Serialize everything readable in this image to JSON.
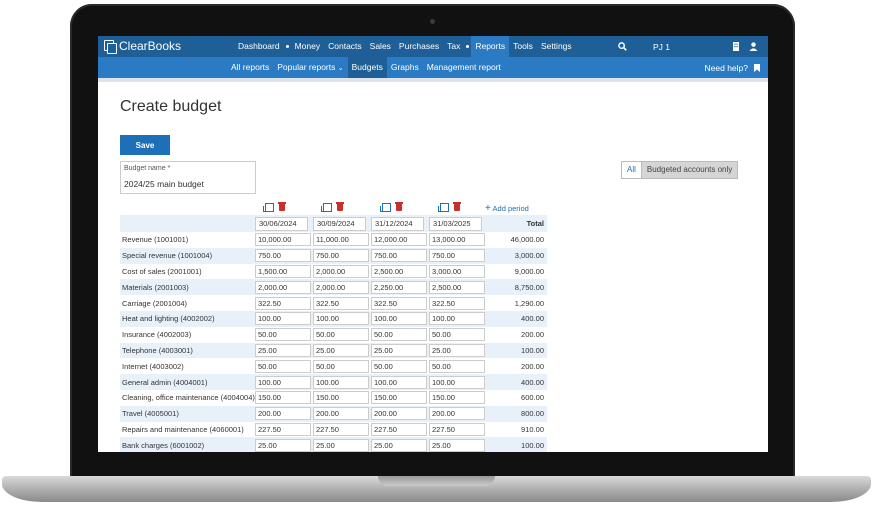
{
  "app": {
    "logo": "ClearBooks",
    "user": "PJ 1"
  },
  "nav": {
    "items": [
      "Dashboard",
      "Money",
      "Contacts",
      "Sales",
      "Purchases",
      "Tax",
      "Reports",
      "Tools",
      "Settings"
    ],
    "active": "Reports"
  },
  "subnav": {
    "items": [
      "All reports",
      "Popular reports",
      "Budgets",
      "Graphs",
      "Management report"
    ],
    "active": "Budgets",
    "help": "Need help?"
  },
  "page": {
    "title": "Create budget",
    "save_label": "Save",
    "budget_name_label": "Budget name *",
    "budget_name_value": "2024/25 main budget",
    "toggle_all": "All",
    "toggle_budgeted": "Budgeted accounts only",
    "add_period": "Add period"
  },
  "table": {
    "periods": [
      "30/06/2024",
      "30/09/2024",
      "31/12/2024",
      "31/03/2025"
    ],
    "total_header": "Total",
    "rows": [
      {
        "account": "Revenue (1001001)",
        "values": [
          "10,000.00",
          "11,000.00",
          "12,000.00",
          "13,000.00"
        ],
        "total": "46,000.00"
      },
      {
        "account": "Special revenue (1001004)",
        "values": [
          "750.00",
          "750.00",
          "750.00",
          "750.00"
        ],
        "total": "3,000.00"
      },
      {
        "account": "Cost of sales (2001001)",
        "values": [
          "1,500.00",
          "2,000.00",
          "2,500.00",
          "3,000.00"
        ],
        "total": "9,000.00"
      },
      {
        "account": "Materials (2001003)",
        "values": [
          "2,000.00",
          "2,000.00",
          "2,250.00",
          "2,500.00"
        ],
        "total": "8,750.00"
      },
      {
        "account": "Carriage (2001004)",
        "values": [
          "322.50",
          "322.50",
          "322.50",
          "322.50"
        ],
        "total": "1,290.00"
      },
      {
        "account": "Heat and lighting (4002002)",
        "values": [
          "100.00",
          "100.00",
          "100.00",
          "100.00"
        ],
        "total": "400.00"
      },
      {
        "account": "Insurance (4002003)",
        "values": [
          "50.00",
          "50.00",
          "50.00",
          "50.00"
        ],
        "total": "200.00"
      },
      {
        "account": "Telephone (4003001)",
        "values": [
          "25.00",
          "25.00",
          "25.00",
          "25.00"
        ],
        "total": "100.00"
      },
      {
        "account": "Internet (4003002)",
        "values": [
          "50.00",
          "50.00",
          "50.00",
          "50.00"
        ],
        "total": "200.00"
      },
      {
        "account": "General admin (4004001)",
        "values": [
          "100.00",
          "100.00",
          "100.00",
          "100.00"
        ],
        "total": "400.00"
      },
      {
        "account": "Cleaning, office maintenance (4004004)",
        "values": [
          "150.00",
          "150.00",
          "150.00",
          "150.00"
        ],
        "total": "600.00"
      },
      {
        "account": "Travel (4005001)",
        "values": [
          "200.00",
          "200.00",
          "200.00",
          "200.00"
        ],
        "total": "800.00"
      },
      {
        "account": "Repairs and maintenance (4060001)",
        "values": [
          "227.50",
          "227.50",
          "227.50",
          "227.50"
        ],
        "total": "910.00"
      },
      {
        "account": "Bank charges (6001002)",
        "values": [
          "25.00",
          "25.00",
          "25.00",
          "25.00"
        ],
        "total": "100.00"
      }
    ]
  },
  "colors": {
    "nav": "#1d5f96",
    "subnav": "#2a7bc4",
    "accent": "#1d6fb8",
    "delete": "#c9302c",
    "row_alt": "#e8f1fa"
  }
}
